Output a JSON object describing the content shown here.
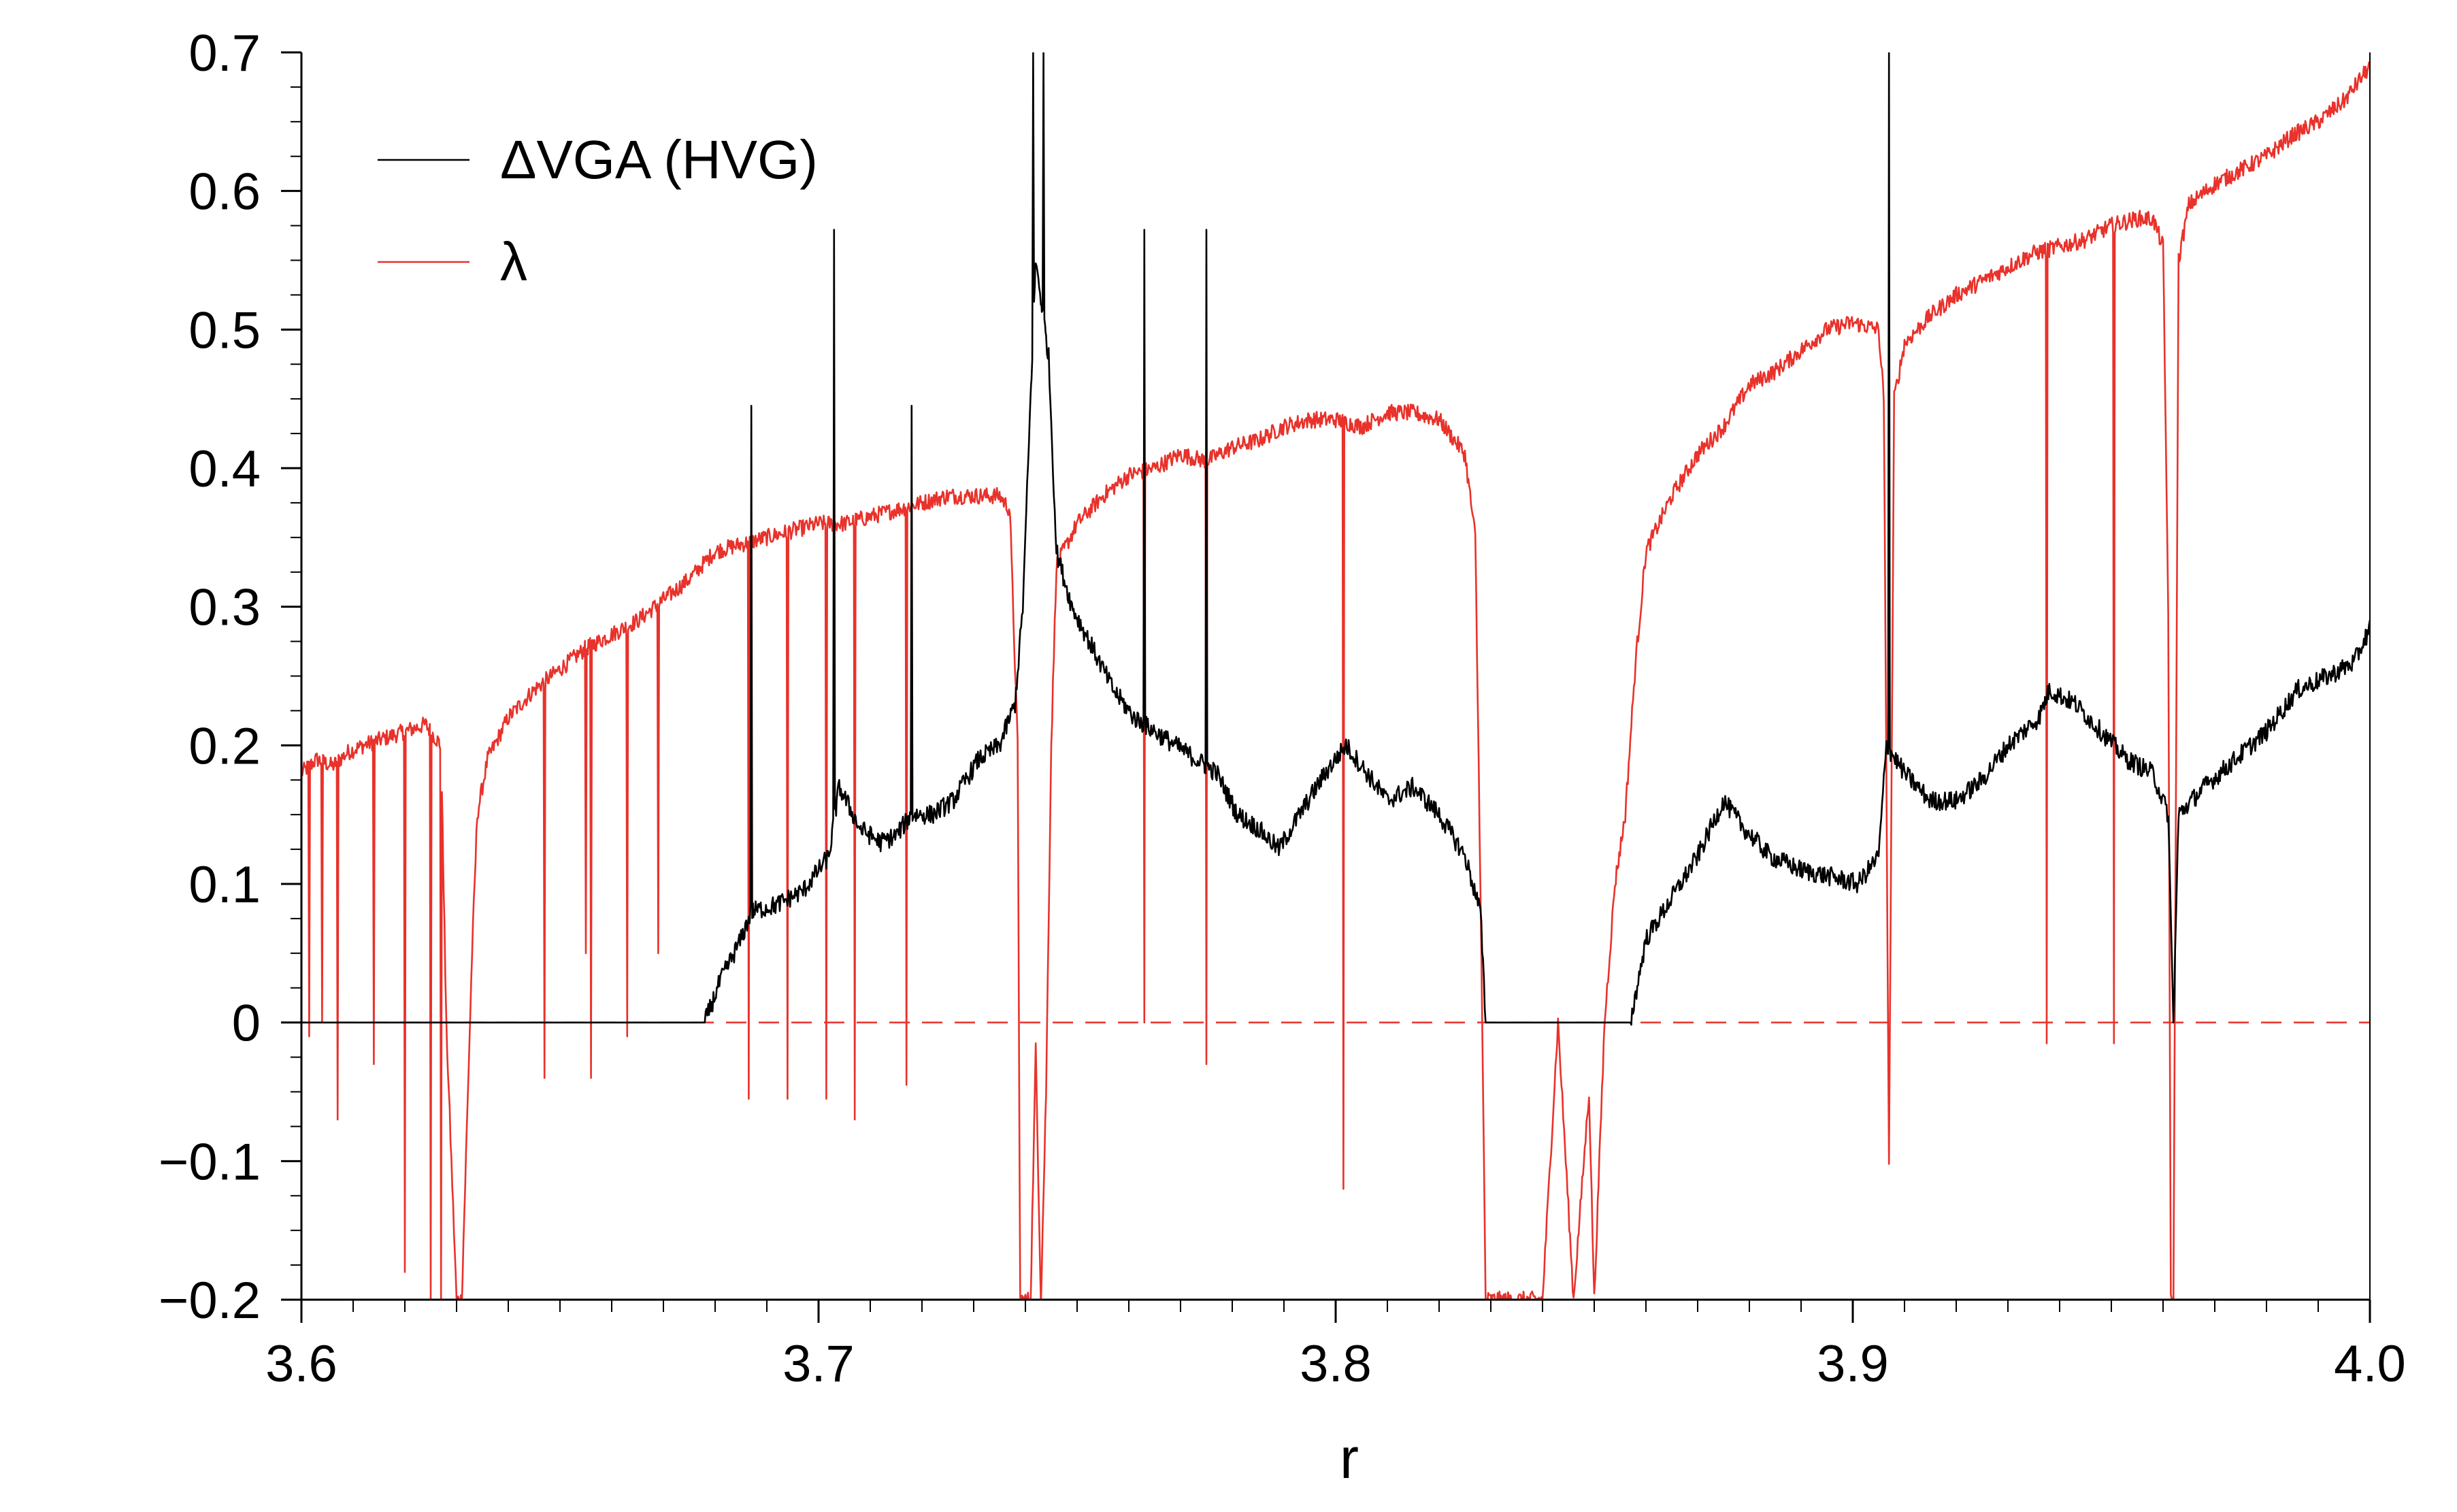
{
  "chart_data": {
    "type": "line",
    "title": "",
    "xlabel": "r",
    "ylabel": "",
    "xlim": [
      3.6,
      4.0
    ],
    "ylim": [
      -0.2,
      0.7
    ],
    "x_ticks": [
      3.6,
      3.7,
      3.8,
      3.9,
      4.0
    ],
    "x_tick_labels": [
      "3.6",
      "3.7",
      "3.8",
      "3.9",
      "4.0"
    ],
    "y_ticks": [
      -0.2,
      -0.1,
      0,
      0.1,
      0.2,
      0.3,
      0.4,
      0.5,
      0.6,
      0.7
    ],
    "y_tick_labels": [
      "−0.2",
      "−0.1",
      "0",
      "0.1",
      "0.2",
      "0.3",
      "0.4",
      "0.5",
      "0.6",
      "0.7"
    ],
    "reference_line": {
      "y": 0,
      "style": "dashed",
      "color": "#e8322b"
    },
    "legend": {
      "position": "top-left"
    },
    "series": [
      {
        "name": "ΔVGA (HVG)",
        "color": "#000000",
        "baseline": [
          [
            3.6,
            0.0
          ],
          [
            3.678,
            0.0
          ],
          [
            3.681,
            0.03
          ],
          [
            3.685,
            0.06
          ],
          [
            3.687,
            0.08
          ],
          [
            3.692,
            0.085
          ],
          [
            3.697,
            0.095
          ],
          [
            3.7,
            0.11
          ],
          [
            3.702,
            0.12
          ],
          [
            3.704,
            0.17
          ],
          [
            3.708,
            0.14
          ],
          [
            3.712,
            0.13
          ],
          [
            3.715,
            0.135
          ],
          [
            3.718,
            0.15
          ],
          [
            3.722,
            0.15
          ],
          [
            3.726,
            0.16
          ],
          [
            3.731,
            0.19
          ],
          [
            3.735,
            0.2
          ],
          [
            3.738,
            0.23
          ],
          [
            3.7395,
            0.3
          ],
          [
            3.742,
            0.55
          ],
          [
            3.7445,
            0.48
          ],
          [
            3.746,
            0.34
          ],
          [
            3.749,
            0.3
          ],
          [
            3.753,
            0.27
          ],
          [
            3.757,
            0.24
          ],
          [
            3.761,
            0.22
          ],
          [
            3.765,
            0.21
          ],
          [
            3.769,
            0.2
          ],
          [
            3.773,
            0.19
          ],
          [
            3.777,
            0.18
          ],
          [
            3.781,
            0.15
          ],
          [
            3.785,
            0.14
          ],
          [
            3.789,
            0.125
          ],
          [
            3.793,
            0.15
          ],
          [
            3.798,
            0.18
          ],
          [
            3.802,
            0.2
          ],
          [
            3.806,
            0.18
          ],
          [
            3.81,
            0.16
          ],
          [
            3.815,
            0.17
          ],
          [
            3.82,
            0.15
          ],
          [
            3.825,
            0.12
          ],
          [
            3.828,
            0.08
          ],
          [
            3.829,
            0.0
          ],
          [
            3.857,
            0.0
          ],
          [
            3.86,
            0.06
          ],
          [
            3.865,
            0.09
          ],
          [
            3.87,
            0.12
          ],
          [
            3.875,
            0.16
          ],
          [
            3.879,
            0.14
          ],
          [
            3.884,
            0.12
          ],
          [
            3.89,
            0.11
          ],
          [
            3.896,
            0.105
          ],
          [
            3.901,
            0.1
          ],
          [
            3.905,
            0.12
          ],
          [
            3.9065,
            0.2
          ],
          [
            3.91,
            0.18
          ],
          [
            3.915,
            0.16
          ],
          [
            3.92,
            0.16
          ],
          [
            3.925,
            0.175
          ],
          [
            3.93,
            0.2
          ],
          [
            3.936,
            0.22
          ],
          [
            3.938,
            0.24
          ],
          [
            3.943,
            0.23
          ],
          [
            3.948,
            0.21
          ],
          [
            3.953,
            0.19
          ],
          [
            3.958,
            0.18
          ],
          [
            3.961,
            0.15
          ],
          [
            3.962,
            0.0
          ],
          [
            3.963,
            0.15
          ],
          [
            3.968,
            0.17
          ],
          [
            3.974,
            0.19
          ],
          [
            3.98,
            0.21
          ],
          [
            3.986,
            0.24
          ],
          [
            3.992,
            0.25
          ],
          [
            3.997,
            0.26
          ],
          [
            4.0,
            0.285
          ]
        ],
        "spikes": [
          [
            3.687,
            0.445
          ],
          [
            3.703,
            0.572
          ],
          [
            3.718,
            0.445
          ],
          [
            3.7415,
            0.7
          ],
          [
            3.7435,
            0.7
          ],
          [
            3.763,
            0.572
          ],
          [
            3.775,
            0.572
          ],
          [
            3.907,
            0.7
          ]
        ]
      },
      {
        "name": "λ",
        "color": "#e8322b",
        "baseline": [
          [
            3.6,
            0.18
          ],
          [
            3.603,
            0.19
          ],
          [
            3.606,
            0.185
          ],
          [
            3.609,
            0.195
          ],
          [
            3.612,
            0.2
          ],
          [
            3.616,
            0.205
          ],
          [
            3.62,
            0.21
          ],
          [
            3.624,
            0.215
          ],
          [
            3.627,
            0.2
          ],
          [
            3.628,
            0.0
          ],
          [
            3.63,
            -0.2
          ],
          [
            3.631,
            -0.2
          ],
          [
            3.633,
            0.05
          ],
          [
            3.634,
            0.15
          ],
          [
            3.636,
            0.19
          ],
          [
            3.64,
            0.22
          ],
          [
            3.645,
            0.24
          ],
          [
            3.65,
            0.255
          ],
          [
            3.655,
            0.27
          ],
          [
            3.66,
            0.28
          ],
          [
            3.665,
            0.29
          ],
          [
            3.67,
            0.305
          ],
          [
            3.675,
            0.32
          ],
          [
            3.68,
            0.34
          ],
          [
            3.685,
            0.345
          ],
          [
            3.69,
            0.35
          ],
          [
            3.695,
            0.355
          ],
          [
            3.7,
            0.36
          ],
          [
            3.705,
            0.36
          ],
          [
            3.71,
            0.365
          ],
          [
            3.715,
            0.37
          ],
          [
            3.72,
            0.375
          ],
          [
            3.725,
            0.38
          ],
          [
            3.73,
            0.38
          ],
          [
            3.735,
            0.38
          ],
          [
            3.737,
            0.37
          ],
          [
            3.7385,
            0.2
          ],
          [
            3.739,
            -0.2
          ],
          [
            3.741,
            -0.2
          ],
          [
            3.742,
            -0.02
          ],
          [
            3.743,
            -0.2
          ],
          [
            3.744,
            -0.05
          ],
          [
            3.745,
            0.2
          ],
          [
            3.746,
            0.33
          ],
          [
            3.75,
            0.36
          ],
          [
            3.755,
            0.38
          ],
          [
            3.76,
            0.395
          ],
          [
            3.765,
            0.4
          ],
          [
            3.77,
            0.41
          ],
          [
            3.775,
            0.405
          ],
          [
            3.78,
            0.415
          ],
          [
            3.785,
            0.42
          ],
          [
            3.79,
            0.43
          ],
          [
            3.795,
            0.435
          ],
          [
            3.8,
            0.435
          ],
          [
            3.805,
            0.43
          ],
          [
            3.81,
            0.44
          ],
          [
            3.815,
            0.44
          ],
          [
            3.82,
            0.435
          ],
          [
            3.825,
            0.41
          ],
          [
            3.827,
            0.35
          ],
          [
            3.828,
            0.1
          ],
          [
            3.829,
            -0.2
          ],
          [
            3.84,
            -0.2
          ],
          [
            3.843,
            0.0
          ],
          [
            3.846,
            -0.2
          ],
          [
            3.849,
            -0.05
          ],
          [
            3.85,
            -0.2
          ],
          [
            3.852,
            0.0
          ],
          [
            3.854,
            0.1
          ],
          [
            3.856,
            0.15
          ],
          [
            3.858,
            0.26
          ],
          [
            3.86,
            0.34
          ],
          [
            3.865,
            0.38
          ],
          [
            3.87,
            0.41
          ],
          [
            3.875,
            0.43
          ],
          [
            3.88,
            0.46
          ],
          [
            3.885,
            0.47
          ],
          [
            3.89,
            0.485
          ],
          [
            3.895,
            0.5
          ],
          [
            3.9,
            0.505
          ],
          [
            3.905,
            0.5
          ],
          [
            3.906,
            0.45
          ],
          [
            3.907,
            -0.1
          ],
          [
            3.908,
            0.45
          ],
          [
            3.91,
            0.49
          ],
          [
            3.915,
            0.51
          ],
          [
            3.92,
            0.525
          ],
          [
            3.925,
            0.535
          ],
          [
            3.93,
            0.545
          ],
          [
            3.935,
            0.555
          ],
          [
            3.94,
            0.56
          ],
          [
            3.945,
            0.565
          ],
          [
            3.95,
            0.575
          ],
          [
            3.955,
            0.58
          ],
          [
            3.958,
            0.58
          ],
          [
            3.96,
            0.56
          ],
          [
            3.961,
            0.3
          ],
          [
            3.9615,
            -0.2
          ],
          [
            3.962,
            -0.2
          ],
          [
            3.963,
            0.55
          ],
          [
            3.965,
            0.59
          ],
          [
            3.97,
            0.605
          ],
          [
            3.975,
            0.615
          ],
          [
            3.98,
            0.625
          ],
          [
            3.985,
            0.64
          ],
          [
            3.99,
            0.65
          ],
          [
            3.995,
            0.665
          ],
          [
            4.0,
            0.69
          ]
        ],
        "dips": [
          [
            3.6015,
            -0.01
          ],
          [
            3.604,
            0.0
          ],
          [
            3.607,
            -0.07
          ],
          [
            3.614,
            -0.03
          ],
          [
            3.62,
            -0.18
          ],
          [
            3.625,
            -0.2
          ],
          [
            3.627,
            -0.2
          ],
          [
            3.647,
            -0.04
          ],
          [
            3.655,
            0.05
          ],
          [
            3.656,
            -0.04
          ],
          [
            3.663,
            -0.01
          ],
          [
            3.669,
            0.05
          ],
          [
            3.6865,
            -0.055
          ],
          [
            3.694,
            -0.055
          ],
          [
            3.7015,
            -0.055
          ],
          [
            3.707,
            -0.07
          ],
          [
            3.717,
            -0.045
          ],
          [
            3.763,
            0.0
          ],
          [
            3.775,
            -0.03
          ],
          [
            3.8015,
            -0.12
          ],
          [
            3.9375,
            -0.015
          ],
          [
            3.9505,
            -0.015
          ]
        ]
      }
    ]
  }
}
